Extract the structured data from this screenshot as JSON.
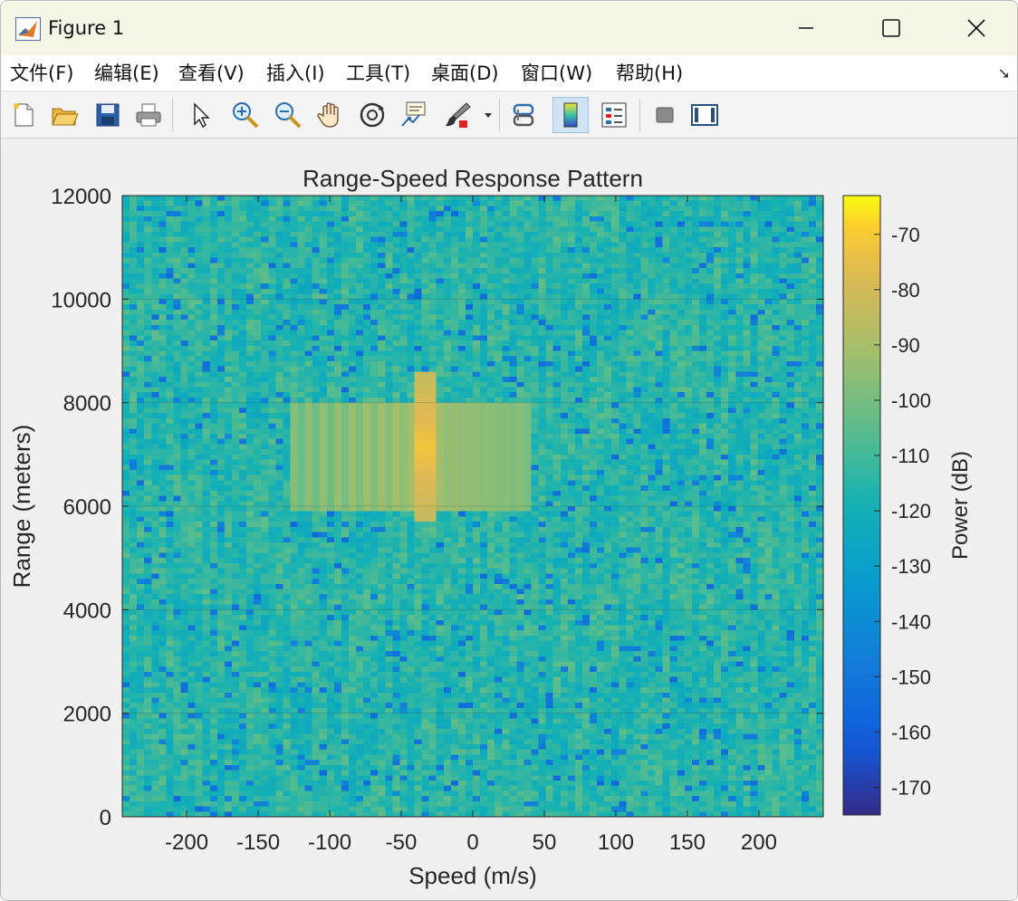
{
  "window": {
    "title": "Figure 1",
    "icon": "matlab-icon",
    "controls": [
      "minimize-icon",
      "maximize-icon",
      "close-icon"
    ]
  },
  "menu": {
    "items": [
      "文件(F)",
      "编辑(E)",
      "查看(V)",
      "插入(I)",
      "工具(T)",
      "桌面(D)",
      "窗口(W)",
      "帮助(H)"
    ],
    "dock_arrow": "↘"
  },
  "toolbar": {
    "tools": [
      "new-figure-icon",
      "open-file-icon",
      "save-icon",
      "print-icon",
      "select-arrow-icon",
      "zoom-in-icon",
      "zoom-out-icon",
      "pan-hand-icon",
      "rotate-3d-icon",
      "data-cursor-icon",
      "brush-icon",
      "brush-dropdown-icon",
      "link-plot-icon",
      "insert-colorbar-icon",
      "insert-legend-icon",
      "hide-plot-tools-icon",
      "show-plot-tools-icon"
    ],
    "active_tool": "insert-colorbar-icon"
  },
  "chart_data": {
    "type": "heatmap",
    "title": "Range-Speed Response Pattern",
    "xlabel": "Speed (m/s)",
    "ylabel": "Range (meters)",
    "xlim": [
      -245,
      245
    ],
    "ylim": [
      0,
      12000
    ],
    "xticks": [
      -200,
      -150,
      -100,
      -50,
      0,
      50,
      100,
      150,
      200
    ],
    "yticks": [
      0,
      2000,
      4000,
      6000,
      8000,
      10000,
      12000
    ],
    "grid": true,
    "colormap": "parula",
    "background_level_db": -115,
    "noise_range_db": [
      -175,
      -100
    ],
    "target": {
      "speed_ms": -35,
      "speed_halfwidth_ms": 7,
      "range_m": [
        5700,
        8600
      ],
      "peak_power_db": -70
    },
    "doppler_sidelobes": {
      "range_m": [
        5900,
        8000
      ],
      "speed_extent_ms": [
        -130,
        40
      ],
      "level_db": -100
    },
    "colorbar": {
      "label": "Power (dB)",
      "limits": [
        -175,
        -63
      ],
      "ticks": [
        -70,
        -80,
        -90,
        -100,
        -110,
        -120,
        -130,
        -140,
        -150,
        -160,
        -170
      ]
    }
  }
}
